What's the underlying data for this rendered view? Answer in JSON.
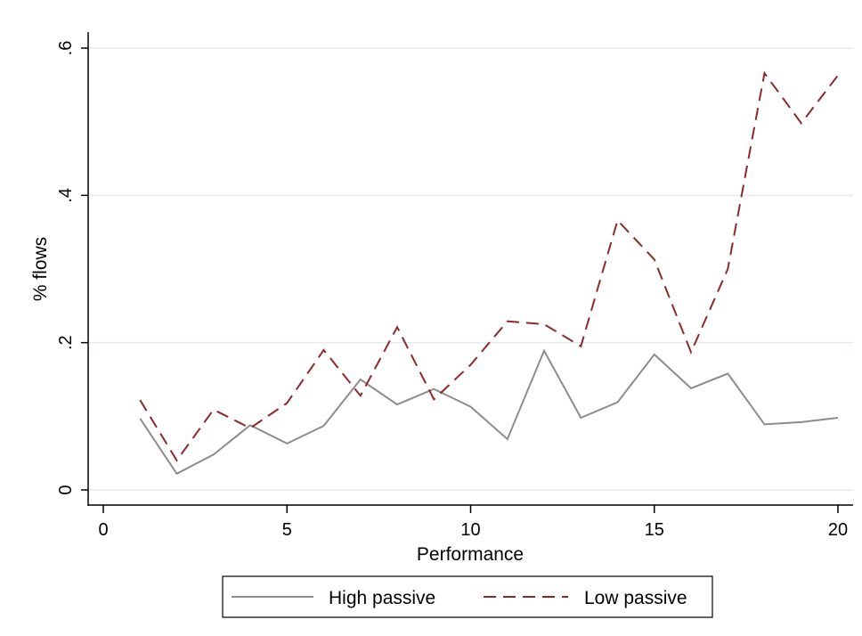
{
  "chart_data": {
    "type": "line",
    "xlabel": "Performance",
    "ylabel": "% flows",
    "xlim": [
      0,
      20
    ],
    "ylim": [
      0,
      0.6
    ],
    "xticks": [
      0,
      5,
      10,
      15,
      20
    ],
    "xtick_labels": [
      "0",
      "5",
      "10",
      "15",
      "20"
    ],
    "yticks": [
      0,
      0.2,
      0.4,
      0.6
    ],
    "ytick_labels": [
      "0",
      ".2",
      ".4",
      ".6"
    ],
    "grid": "horizontal",
    "legend_position": "bottom",
    "x": [
      1,
      2,
      3,
      4,
      5,
      6,
      7,
      8,
      9,
      10,
      11,
      12,
      13,
      14,
      15,
      16,
      17,
      18,
      19,
      20
    ],
    "series": [
      {
        "name": "High passive",
        "color": "#8c8c8c",
        "dash": "solid",
        "values": [
          0.097,
          0.022,
          0.048,
          0.088,
          0.063,
          0.087,
          0.15,
          0.116,
          0.137,
          0.113,
          0.069,
          0.189,
          0.098,
          0.119,
          0.184,
          0.138,
          0.158,
          0.089,
          0.092,
          0.098
        ]
      },
      {
        "name": "Low passive",
        "color": "#8c2a2a",
        "dash": "dashed",
        "values": [
          0.122,
          0.04,
          0.109,
          0.084,
          0.118,
          0.19,
          0.128,
          0.221,
          0.123,
          0.17,
          0.229,
          0.225,
          0.195,
          0.366,
          0.313,
          0.187,
          0.3,
          0.566,
          0.498,
          0.563
        ]
      }
    ]
  }
}
